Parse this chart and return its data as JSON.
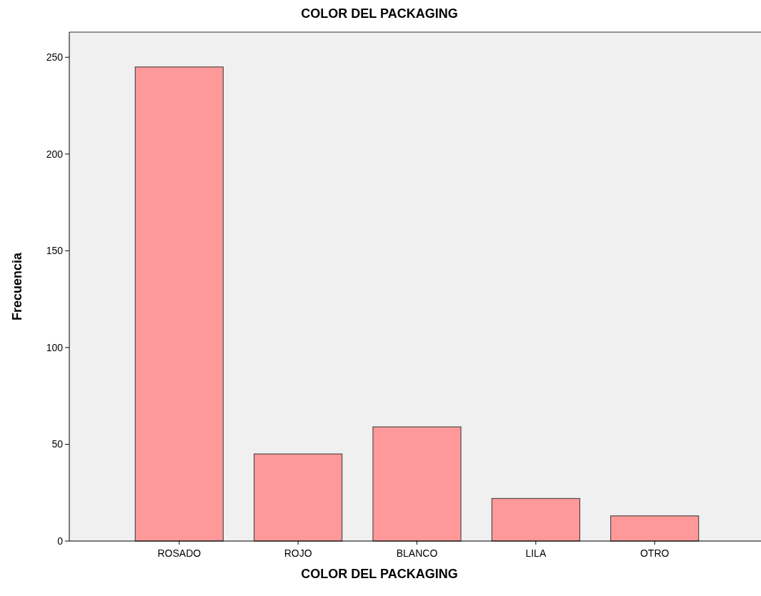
{
  "chart_data": {
    "type": "bar",
    "title": "COLOR DEL PACKAGING",
    "xlabel": "COLOR DEL PACKAGING",
    "ylabel": "Frecuencia",
    "categories": [
      "ROSADO",
      "ROJO",
      "BLANCO",
      "LILA",
      "OTRO"
    ],
    "values": [
      245,
      45,
      59,
      22,
      13
    ],
    "color": "#ff9999",
    "ylim": [
      0,
      263
    ],
    "yticks": [
      0,
      50,
      100,
      150,
      200,
      250
    ],
    "grid": false
  }
}
